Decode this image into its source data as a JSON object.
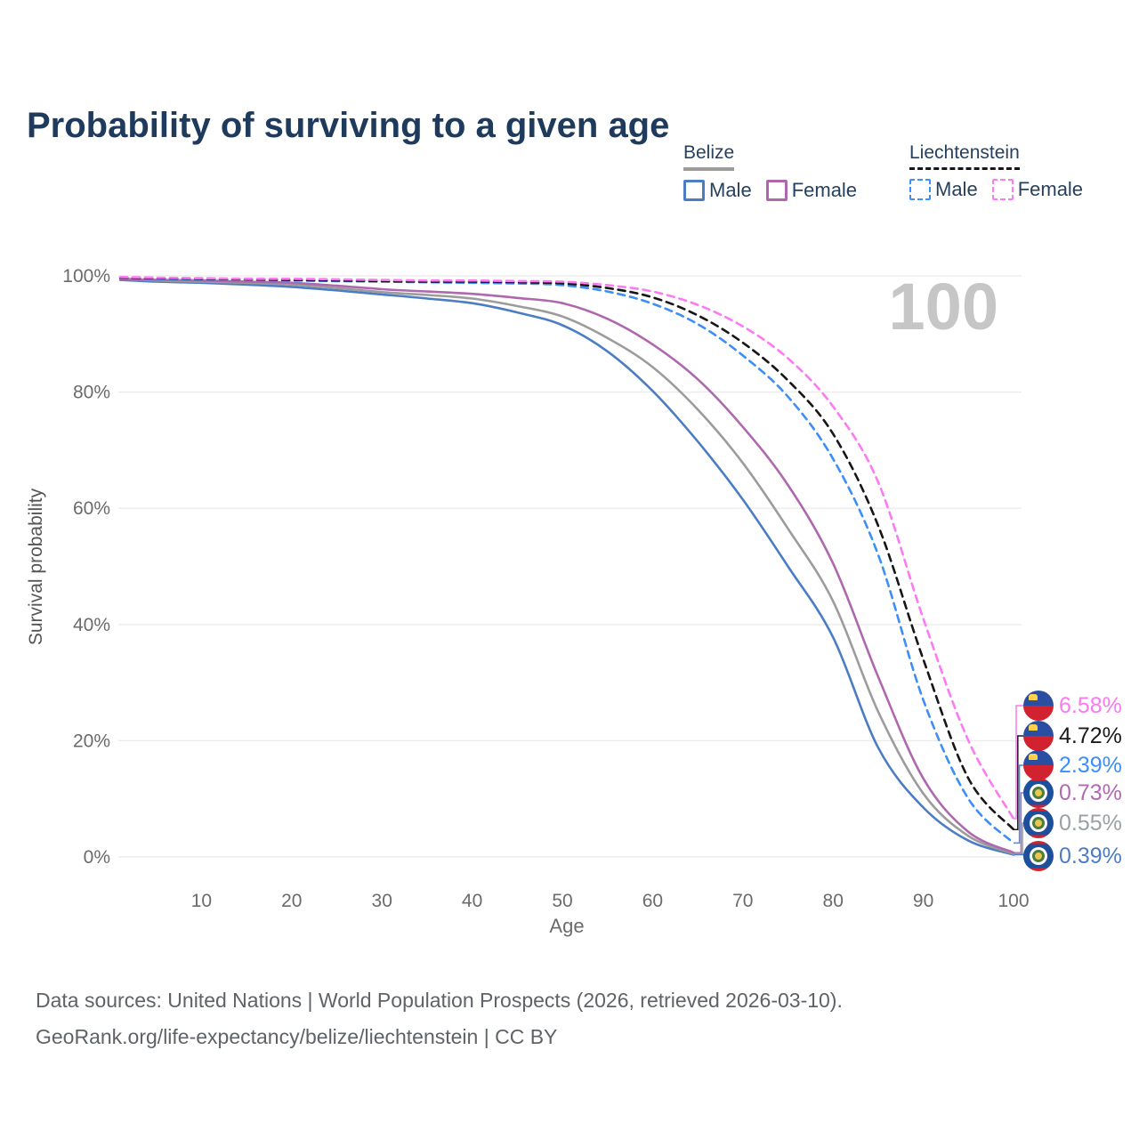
{
  "header": {
    "title": "Probability of surviving to a given age"
  },
  "legend": {
    "groups": [
      {
        "label": "Belize",
        "underline": "solid",
        "underline_color": "#9c9c9c",
        "items": [
          {
            "label": "Male",
            "color": "#4c7dc4",
            "dashed": false
          },
          {
            "label": "Female",
            "color": "#ae68ae",
            "dashed": false
          }
        ]
      },
      {
        "label": "Liechtenstein",
        "underline": "dashed",
        "underline_color": "#161616",
        "items": [
          {
            "label": "Male",
            "color": "#3e8ef7",
            "dashed": true
          },
          {
            "label": "Female",
            "color": "#fc7af2",
            "dashed": true
          }
        ]
      }
    ]
  },
  "chart_data": {
    "type": "line",
    "title": "Probability of surviving to a given age",
    "xlabel": "Age",
    "ylabel": "Survival probability",
    "age_indicator": "100",
    "xlim": [
      0,
      100
    ],
    "ylim": [
      0,
      100
    ],
    "grid": true,
    "x_ticks": [
      10,
      20,
      30,
      40,
      50,
      60,
      70,
      80,
      90,
      100
    ],
    "y_ticks": [
      {
        "value": 0,
        "label": "0%"
      },
      {
        "value": 20,
        "label": "20%"
      },
      {
        "value": 40,
        "label": "40%"
      },
      {
        "value": 60,
        "label": "60%"
      },
      {
        "value": 80,
        "label": "80%"
      },
      {
        "value": 100,
        "label": "100%"
      }
    ],
    "x": [
      1,
      5,
      10,
      15,
      20,
      25,
      30,
      35,
      40,
      45,
      50,
      55,
      60,
      65,
      70,
      75,
      80,
      85,
      90,
      95,
      100
    ],
    "series": [
      {
        "name": "Belize — Male",
        "key": "belize_male",
        "country": "Belize",
        "sex": "Male",
        "color": "#4c7dc4",
        "dashed": false,
        "values": [
          99.3,
          99.0,
          98.8,
          98.5,
          98.1,
          97.5,
          96.8,
          96.1,
          95.3,
          93.7,
          91.5,
          87.0,
          80.2,
          71.5,
          61.5,
          50.0,
          37.8,
          18.8,
          8.5,
          2.8,
          0.39
        ]
      },
      {
        "name": "Belize — Both sexes",
        "key": "belize_total",
        "country": "Belize",
        "sex": "Both",
        "color": "#9c9c9c",
        "dashed": false,
        "values": [
          99.5,
          99.2,
          99.0,
          98.8,
          98.5,
          97.9,
          97.2,
          96.7,
          96.1,
          94.8,
          93.0,
          89.3,
          84.3,
          77.0,
          67.8,
          56.5,
          44.0,
          25.0,
          10.9,
          3.6,
          0.55
        ]
      },
      {
        "name": "Belize — Female",
        "key": "belize_female",
        "country": "Belize",
        "sex": "Female",
        "color": "#ae68ae",
        "dashed": false,
        "values": [
          99.5,
          99.3,
          99.2,
          99.0,
          98.8,
          98.3,
          97.7,
          97.3,
          96.9,
          96.2,
          95.3,
          92.6,
          88.2,
          82.2,
          74.0,
          64.0,
          50.5,
          31.0,
          13.5,
          4.3,
          0.73
        ]
      },
      {
        "name": "Liechtenstein — Male",
        "key": "liechtenstein_male",
        "country": "Liechtenstein",
        "sex": "Male",
        "color": "#3e8ef7",
        "dashed": true,
        "values": [
          99.7,
          99.5,
          99.4,
          99.3,
          99.2,
          99.1,
          99.0,
          98.9,
          98.8,
          98.7,
          98.4,
          97.3,
          95.2,
          91.7,
          86.3,
          79.2,
          68.5,
          52.0,
          27.0,
          10.0,
          2.39
        ]
      },
      {
        "name": "Liechtenstein — Both sexes",
        "key": "liechtenstein_total",
        "country": "Liechtenstein",
        "sex": "Both",
        "color": "#161616",
        "dashed": true,
        "values": [
          99.7,
          99.6,
          99.5,
          99.4,
          99.3,
          99.2,
          99.1,
          99.0,
          99.0,
          98.9,
          98.7,
          97.9,
          96.3,
          93.2,
          88.5,
          82.0,
          72.8,
          57.0,
          34.0,
          13.5,
          4.72
        ]
      },
      {
        "name": "Liechtenstein — Female",
        "key": "liechtenstein_female",
        "country": "Liechtenstein",
        "sex": "Female",
        "color": "#fc7af2",
        "dashed": true,
        "values": [
          99.8,
          99.7,
          99.6,
          99.5,
          99.5,
          99.4,
          99.3,
          99.2,
          99.2,
          99.1,
          99.0,
          98.4,
          97.3,
          95.0,
          91.3,
          85.8,
          77.5,
          64.5,
          41.0,
          20.0,
          6.58
        ]
      }
    ]
  },
  "endpoints": [
    {
      "value": "6.58%",
      "color": "#fb7af0",
      "flag": "liechtenstein",
      "series": "liechtenstein_female"
    },
    {
      "value": "4.72%",
      "color": "#1b1b1b",
      "flag": "liechtenstein",
      "series": "liechtenstein_total"
    },
    {
      "value": "2.39%",
      "color": "#3e8ef7",
      "flag": "liechtenstein",
      "series": "liechtenstein_male"
    },
    {
      "value": "0.73%",
      "color": "#b169b1",
      "flag": "belize",
      "series": "belize_female"
    },
    {
      "value": "0.55%",
      "color": "#9aa0a6",
      "flag": "belize",
      "series": "belize_total"
    },
    {
      "value": "0.39%",
      "color": "#4c7dc4",
      "flag": "belize",
      "series": "belize_male"
    }
  ],
  "footer": {
    "line1": "Data sources: United Nations | World Population Prospects (2026, retrieved 2026-03-10).",
    "line2": "GeoRank.org/life-expectancy/belize/liechtenstein | CC BY"
  },
  "colors": {
    "title": "#1e3a5c",
    "axis_text": "#6b6b6b",
    "gridline": "#ebebeb",
    "watermark": "#c6c6c6"
  }
}
